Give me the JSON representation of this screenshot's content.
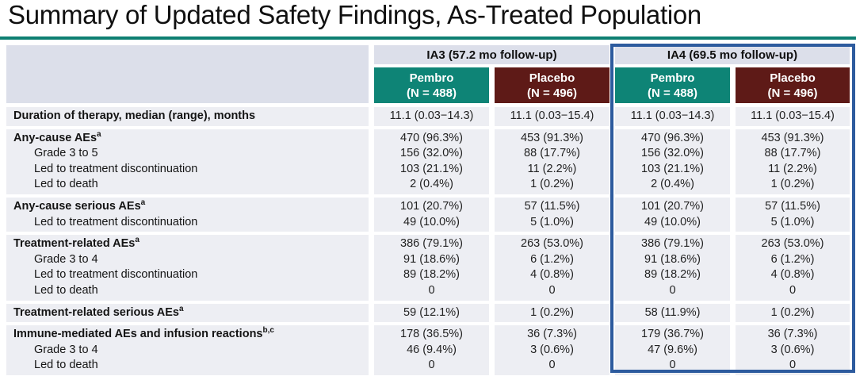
{
  "title": "Summary of Updated Safety Findings, As-Treated Population",
  "colors": {
    "teal": "#0E8476",
    "maroon": "#5E1A17",
    "header_gray": "#DCDFEA",
    "row_gray": "#EDEEF3",
    "highlight_blue": "#2D5B9E",
    "title_rule_teal": "#0E7F72"
  },
  "table": {
    "groups": [
      {
        "label": "IA3 (57.2 mo follow-up)",
        "highlighted": false
      },
      {
        "label": "IA4 (69.5 mo follow-up)",
        "highlighted": true
      }
    ],
    "columns": [
      {
        "label": "Pembro",
        "n": "(N = 488)",
        "color": "teal"
      },
      {
        "label": "Placebo",
        "n": "(N = 496)",
        "color": "maroon"
      },
      {
        "label": "Pembro",
        "n": "(N = 488)",
        "color": "teal"
      },
      {
        "label": "Placebo",
        "n": "(N = 496)",
        "color": "maroon"
      }
    ],
    "sections": [
      {
        "rows": [
          {
            "label": "Duration of therapy, median (range), months",
            "sup": "",
            "main": true,
            "values": [
              "11.1 (0.03−14.3)",
              "11.1 (0.03−15.4)",
              "11.1 (0.03−14.3)",
              "11.1 (0.03−15.4)"
            ]
          }
        ]
      },
      {
        "rows": [
          {
            "label": "Any-cause AEs",
            "sup": "a",
            "main": true,
            "values": [
              "470 (96.3%)",
              "453 (91.3%)",
              "470 (96.3%)",
              "453 (91.3%)"
            ]
          },
          {
            "label": "Grade 3 to 5",
            "sup": "",
            "main": false,
            "values": [
              "156 (32.0%)",
              "88 (17.7%)",
              "156 (32.0%)",
              "88 (17.7%)"
            ]
          },
          {
            "label": "Led to treatment discontinuation",
            "sup": "",
            "main": false,
            "values": [
              "103 (21.1%)",
              "11 (2.2%)",
              "103 (21.1%)",
              "11 (2.2%)"
            ]
          },
          {
            "label": "Led to death",
            "sup": "",
            "main": false,
            "values": [
              "2 (0.4%)",
              "1 (0.2%)",
              "2 (0.4%)",
              "1 (0.2%)"
            ]
          }
        ]
      },
      {
        "rows": [
          {
            "label": "Any-cause serious AEs",
            "sup": "a",
            "main": true,
            "values": [
              "101 (20.7%)",
              "57 (11.5%)",
              "101 (20.7%)",
              "57 (11.5%)"
            ]
          },
          {
            "label": "Led to treatment discontinuation",
            "sup": "",
            "main": false,
            "values": [
              "49 (10.0%)",
              "5 (1.0%)",
              "49 (10.0%)",
              "5 (1.0%)"
            ]
          }
        ]
      },
      {
        "rows": [
          {
            "label": "Treatment-related AEs",
            "sup": "a",
            "main": true,
            "values": [
              "386 (79.1%)",
              "263 (53.0%)",
              "386 (79.1%)",
              "263 (53.0%)"
            ]
          },
          {
            "label": "Grade 3 to 4",
            "sup": "",
            "main": false,
            "values": [
              "91 (18.6%)",
              "6 (1.2%)",
              "91 (18.6%)",
              "6 (1.2%)"
            ]
          },
          {
            "label": "Led to treatment discontinuation",
            "sup": "",
            "main": false,
            "values": [
              "89 (18.2%)",
              "4 (0.8%)",
              "89 (18.2%)",
              "4 (0.8%)"
            ]
          },
          {
            "label": "Led to death",
            "sup": "",
            "main": false,
            "values": [
              "0",
              "0",
              "0",
              "0"
            ]
          }
        ]
      },
      {
        "rows": [
          {
            "label": "Treatment-related serious AEs",
            "sup": "a",
            "main": true,
            "values": [
              "59 (12.1%)",
              "1 (0.2%)",
              "58 (11.9%)",
              "1 (0.2%)"
            ]
          }
        ]
      },
      {
        "rows": [
          {
            "label": "Immune-mediated AEs and infusion reactions",
            "sup": "b,c",
            "main": true,
            "values": [
              "178 (36.5%)",
              "36 (7.3%)",
              "179 (36.7%)",
              "36 (7.3%)"
            ]
          },
          {
            "label": "Grade 3 to 4",
            "sup": "",
            "main": false,
            "values": [
              "46 (9.4%)",
              "3 (0.6%)",
              "47 (9.6%)",
              "3 (0.6%)"
            ]
          },
          {
            "label": "Led to death",
            "sup": "",
            "main": false,
            "values": [
              "0",
              "0",
              "0",
              "0"
            ]
          }
        ]
      }
    ]
  }
}
